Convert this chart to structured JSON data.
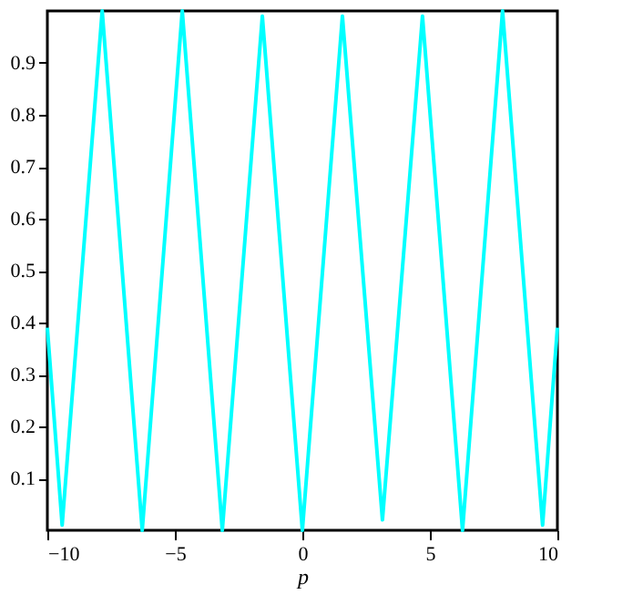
{
  "chart_data": {
    "type": "line",
    "xlabel": "p",
    "x": [
      -10,
      -9.42,
      -7.85,
      -6.28,
      -4.71,
      -3.14,
      -1.57,
      0,
      1.57,
      3.14,
      4.71,
      6.28,
      7.85,
      9.42,
      10
    ],
    "series": [
      {
        "color": "#00ffff",
        "values": [
          0.39,
          0.01,
          1.0,
          0.0,
          1.0,
          0.0,
          0.99,
          0.0,
          0.99,
          0.02,
          0.99,
          0.0,
          1.0,
          0.01,
          0.39
        ]
      }
    ],
    "xlim": [
      -10,
      10
    ],
    "ylim": [
      0,
      1.0
    ],
    "xticks": [
      -10,
      -5,
      0,
      5,
      10
    ],
    "yticks": [
      0.1,
      0.2,
      0.3,
      0.4,
      0.5,
      0.6,
      0.7,
      0.8,
      0.9
    ],
    "grid": false,
    "marker": "none",
    "line_style": "solid"
  }
}
